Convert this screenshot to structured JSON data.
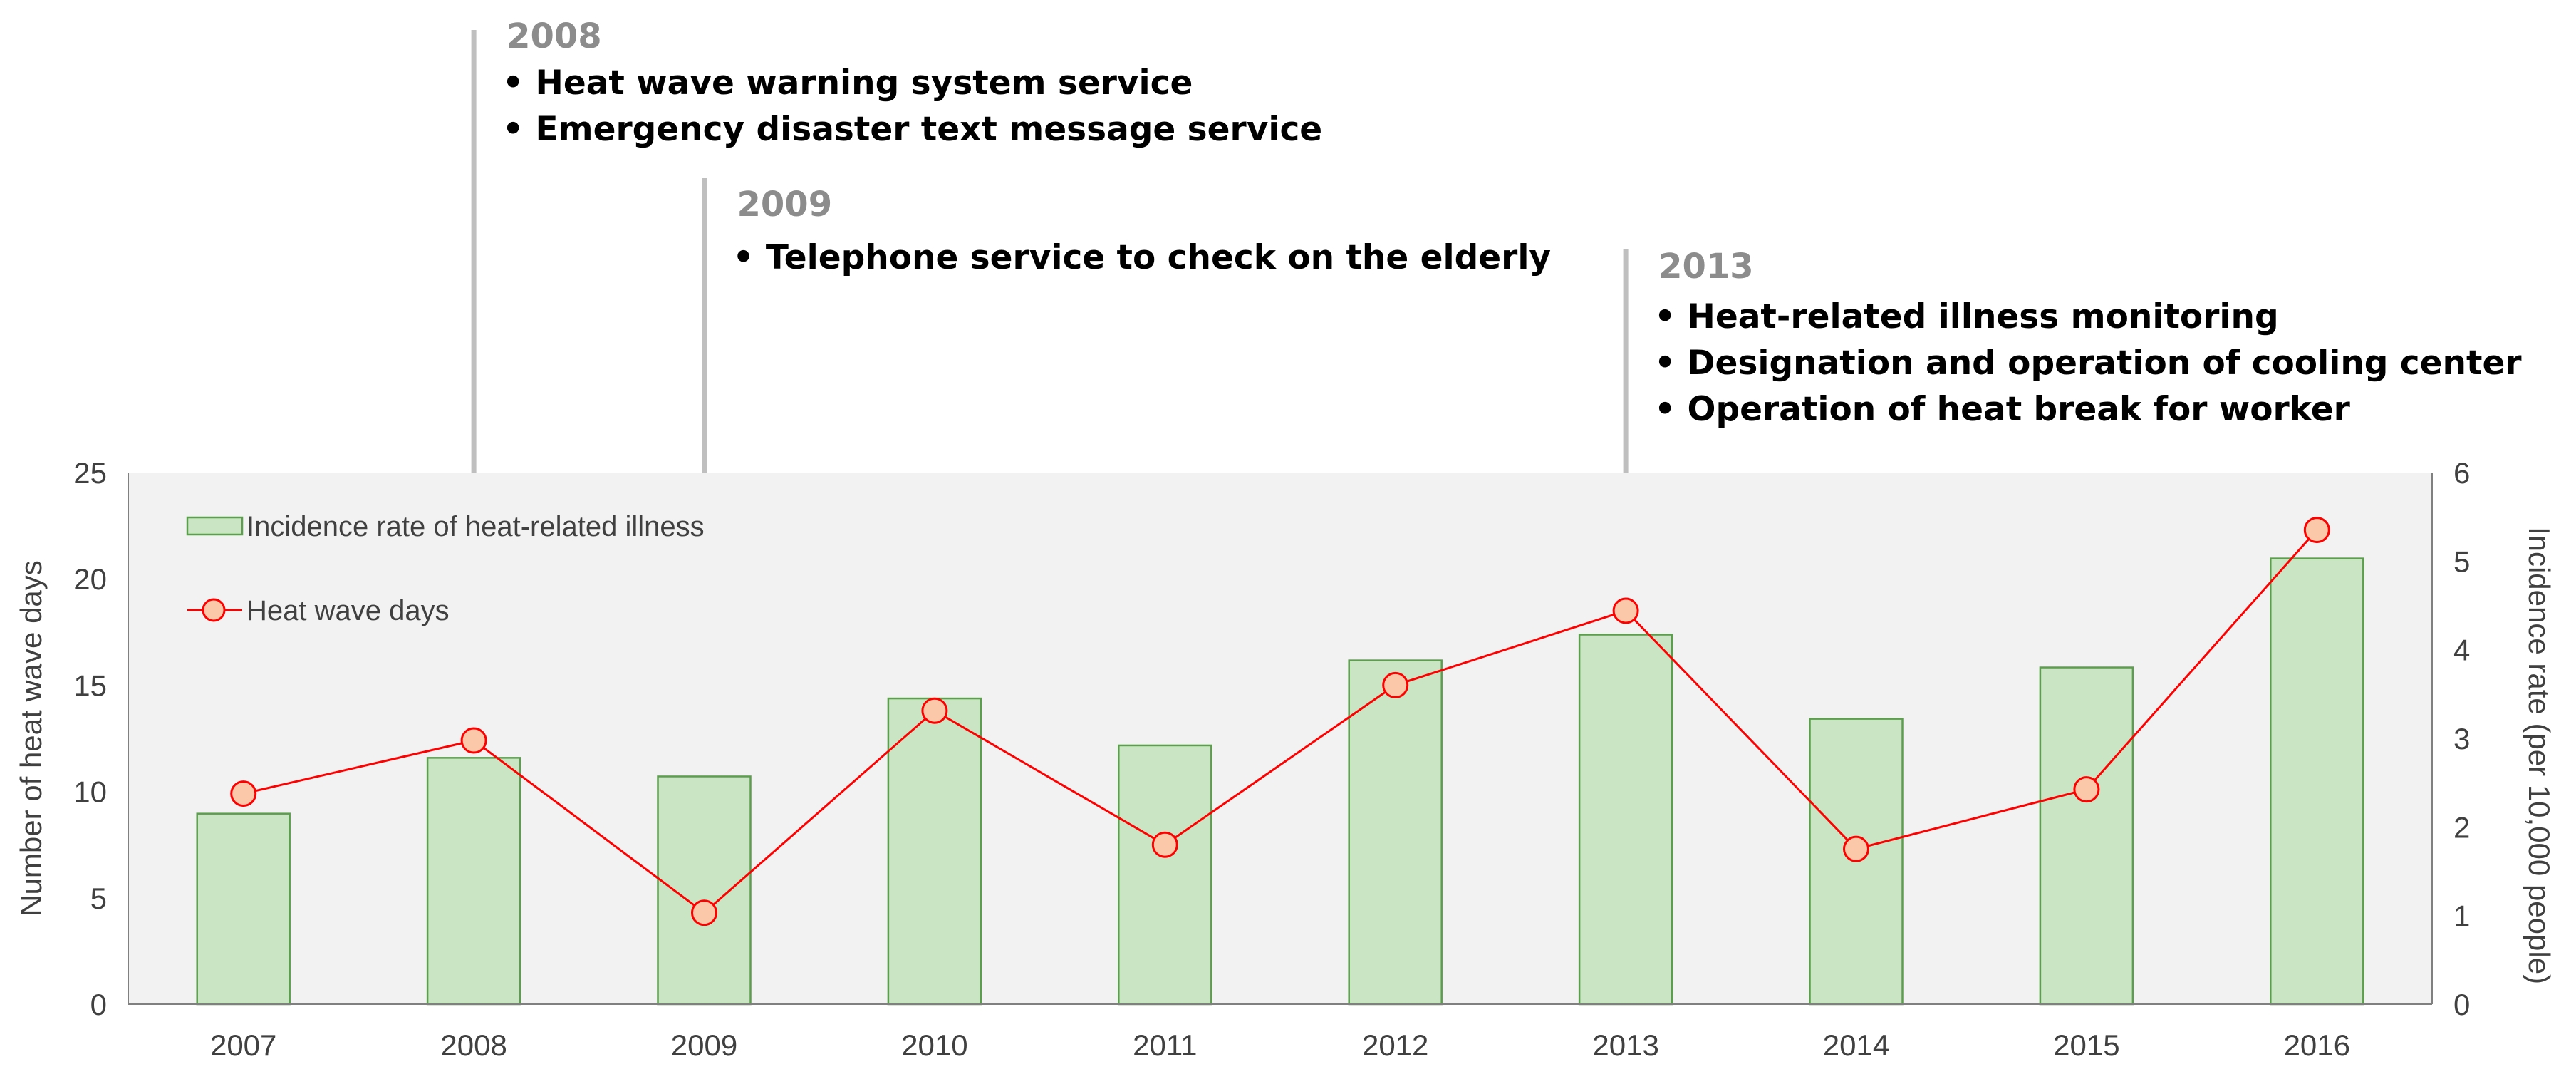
{
  "chart_data": {
    "type": "bar",
    "categories": [
      "2007",
      "2008",
      "2009",
      "2010",
      "2011",
      "2012",
      "2013",
      "2014",
      "2015",
      "2016"
    ],
    "series": [
      {
        "name": "Incidence rate of heat-related illness",
        "type": "bar",
        "axis": "right",
        "values": [
          2.15,
          2.78,
          2.57,
          3.45,
          2.92,
          3.88,
          4.17,
          3.22,
          3.8,
          5.03
        ]
      },
      {
        "name": "Heat wave days",
        "type": "line",
        "axis": "left",
        "values": [
          9.9,
          12.4,
          4.3,
          13.8,
          7.5,
          15.0,
          18.5,
          7.3,
          10.1,
          22.3
        ]
      }
    ],
    "ylabel": "Number of heat wave days",
    "y2label": "Incidence rate (per 10,000 people)",
    "ylim": [
      0,
      25
    ],
    "y2lim": [
      0,
      6
    ],
    "yticks": [
      0,
      5,
      10,
      15,
      20,
      25
    ],
    "y2ticks": [
      0,
      1,
      2,
      3,
      4,
      5,
      6
    ],
    "legend_position": "top-left",
    "grid": false,
    "colors": {
      "bar_fill": "#c9e5c3",
      "bar_stroke": "#5c9e4e",
      "line": "#ff0000",
      "marker_fill": "#fbc9a9",
      "plot_bg": "#f2f2f2",
      "annotation_line": "#bfbfbf"
    },
    "annotations": [
      {
        "category": "2008",
        "year": "2008",
        "items": [
          "• Heat wave warning system service",
          "• Emergency disaster text message service"
        ]
      },
      {
        "category": "2009",
        "year": "2009",
        "items": [
          "• Telephone service to check on the elderly"
        ]
      },
      {
        "category": "2013",
        "year": "2013",
        "items": [
          "• Heat-related illness monitoring",
          "• Designation and operation of cooling center",
          "• Operation of heat break for worker"
        ]
      }
    ]
  }
}
